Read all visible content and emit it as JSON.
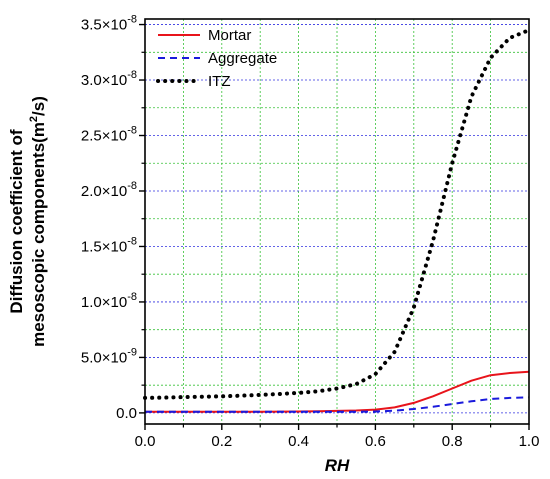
{
  "chart_data": {
    "type": "line",
    "title": "",
    "xlabel": "RH",
    "ylabel_line1": "Diffusion coefficient of",
    "ylabel_line2": "mesoscopic components(m",
    "ylabel_sup": "2",
    "ylabel_tail": "/s)",
    "xlim": [
      0.0,
      1.0
    ],
    "ylim": [
      -1e-09,
      3.55e-08
    ],
    "x_ticks": [
      0.0,
      0.2,
      0.4,
      0.6,
      0.8,
      1.0
    ],
    "x_tick_labels": [
      "0.0",
      "0.2",
      "0.4",
      "0.6",
      "0.8",
      "1.0"
    ],
    "y_ticks": [
      0.0,
      5e-09,
      1e-08,
      1.5e-08,
      2e-08,
      2.5e-08,
      3e-08,
      3.5e-08
    ],
    "y_tick_labels": [
      {
        "mant": "0.0",
        "exp": ""
      },
      {
        "mant": "5.0×10",
        "exp": "-9"
      },
      {
        "mant": "1.0×10",
        "exp": "-8"
      },
      {
        "mant": "1.5×10",
        "exp": "-8"
      },
      {
        "mant": "2.0×10",
        "exp": "-8"
      },
      {
        "mant": "2.5×10",
        "exp": "-8"
      },
      {
        "mant": "3.0×10",
        "exp": "-8"
      },
      {
        "mant": "3.5×10",
        "exp": "-8"
      }
    ],
    "grid": true,
    "legend_position": "top-left",
    "x": [
      0.0,
      0.05,
      0.1,
      0.15,
      0.2,
      0.25,
      0.3,
      0.35,
      0.4,
      0.45,
      0.5,
      0.55,
      0.6,
      0.65,
      0.7,
      0.75,
      0.8,
      0.85,
      0.9,
      0.95,
      1.0
    ],
    "series": [
      {
        "name": "Mortar",
        "color": "#e8141b",
        "dash": "solid",
        "values": [
          1e-10,
          1e-10,
          1e-10,
          1e-10,
          1e-10,
          1e-10,
          1.1e-10,
          1.2e-10,
          1.3e-10,
          1.5e-10,
          1.8e-10,
          2.2e-10,
          3e-10,
          5e-10,
          9e-10,
          1.5e-09,
          2.2e-09,
          2.9e-09,
          3.4e-09,
          3.6e-09,
          3.7e-09
        ]
      },
      {
        "name": "Aggregate",
        "color": "#1a1adc",
        "dash": "dashed",
        "values": [
          1e-10,
          1e-10,
          1e-10,
          1e-10,
          1e-10,
          1e-10,
          1e-10,
          1e-10,
          1e-10,
          1e-10,
          1e-10,
          1.1e-10,
          1.3e-10,
          2e-10,
          3.5e-10,
          5.5e-10,
          8e-10,
          1.05e-09,
          1.25e-09,
          1.35e-09,
          1.4e-09
        ]
      },
      {
        "name": "ITZ",
        "color": "#000000",
        "dash": "dotted",
        "values": [
          1.35e-09,
          1.38e-09,
          1.42e-09,
          1.46e-09,
          1.5e-09,
          1.55e-09,
          1.62e-09,
          1.7e-09,
          1.8e-09,
          1.95e-09,
          2.2e-09,
          2.6e-09,
          3.5e-09,
          5.5e-09,
          9.5e-09,
          1.55e-08,
          2.25e-08,
          2.85e-08,
          3.2e-08,
          3.38e-08,
          3.45e-08
        ]
      }
    ]
  }
}
